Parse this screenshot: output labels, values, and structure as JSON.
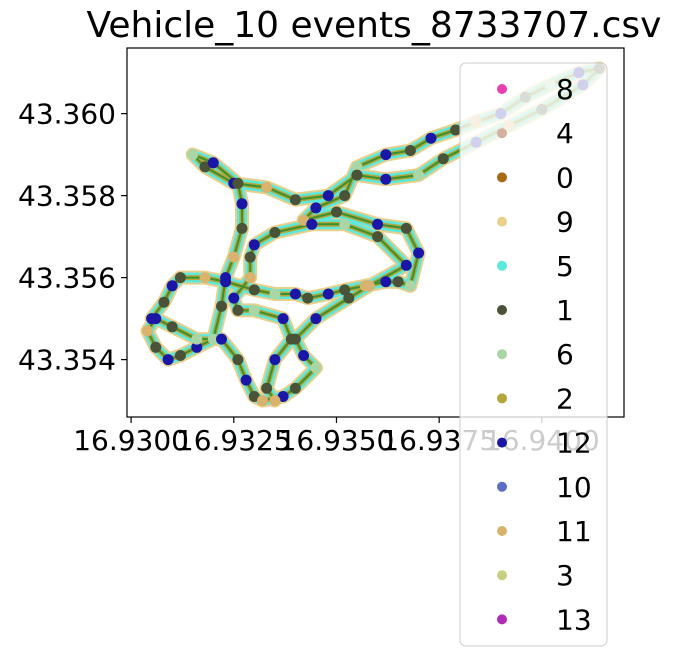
{
  "chart_data": {
    "type": "scatter",
    "title": "Vehicle_10 events_8733707.csv",
    "xlabel": "",
    "ylabel": "",
    "xlim": [
      16.9299,
      16.942
    ],
    "ylim": [
      43.3526,
      43.3616
    ],
    "x_ticks": [
      {
        "value": 16.93,
        "label": "16.9300"
      },
      {
        "value": 16.9325,
        "label": "16.9325"
      },
      {
        "value": 16.935,
        "label": "16.9350"
      },
      {
        "value": 16.9375,
        "label": "16.9375"
      },
      {
        "value": 16.94,
        "label": "16.9400"
      }
    ],
    "y_ticks": [
      {
        "value": 43.354,
        "label": "43.354"
      },
      {
        "value": 43.356,
        "label": "43.356"
      },
      {
        "value": 43.358,
        "label": "43.358"
      },
      {
        "value": 43.36,
        "label": "43.360"
      }
    ],
    "grid": false,
    "legend_position": "right",
    "series": [
      {
        "name": "8",
        "color": "#e83fb1"
      },
      {
        "name": "4",
        "color": "#d4b0a0"
      },
      {
        "name": "0",
        "color": "#a86a12"
      },
      {
        "name": "9",
        "color": "#e8d08c"
      },
      {
        "name": "5",
        "color": "#5ce8dc"
      },
      {
        "name": "1",
        "color": "#4a5238"
      },
      {
        "name": "6",
        "color": "#a9d6a4"
      },
      {
        "name": "2",
        "color": "#b3a63a"
      },
      {
        "name": "12",
        "color": "#1c16a6"
      },
      {
        "name": "10",
        "color": "#5c6fc2"
      },
      {
        "name": "11",
        "color": "#d9b26e"
      },
      {
        "name": "3",
        "color": "#c8d080"
      },
      {
        "name": "13",
        "color": "#ad2bb5"
      }
    ],
    "route": [
      [
        16.9305,
        43.355
      ],
      [
        16.9308,
        43.3554
      ],
      [
        16.931,
        43.3558
      ],
      [
        16.9312,
        43.356
      ],
      [
        16.9318,
        43.356
      ],
      [
        16.9323,
        43.3559
      ],
      [
        16.933,
        43.3557
      ],
      [
        16.9335,
        43.3556
      ],
      [
        16.934,
        43.3556
      ],
      [
        16.9343,
        43.3555
      ],
      [
        16.9348,
        43.3556
      ],
      [
        16.9352,
        43.3557
      ],
      [
        16.9357,
        43.3558
      ],
      [
        16.9362,
        43.3559
      ],
      [
        16.9365,
        43.3559
      ],
      [
        16.9368,
        43.3558
      ],
      [
        16.937,
        43.3566
      ],
      [
        16.9367,
        43.3572
      ],
      [
        16.936,
        43.3573
      ],
      [
        16.935,
        43.3576
      ],
      [
        16.9342,
        43.3574
      ],
      [
        16.9345,
        43.3577
      ],
      [
        16.9352,
        43.358
      ],
      [
        16.9355,
        43.3587
      ],
      [
        16.9362,
        43.359
      ],
      [
        16.9368,
        43.3591
      ],
      [
        16.9373,
        43.3594
      ],
      [
        16.9379,
        43.3596
      ],
      [
        16.9384,
        43.3598
      ],
      [
        16.939,
        43.36
      ],
      [
        16.9396,
        43.3604
      ],
      [
        16.9402,
        43.3607
      ],
      [
        16.9409,
        43.361
      ],
      [
        16.9414,
        43.3611
      ],
      [
        16.941,
        43.3607
      ],
      [
        16.94,
        43.3601
      ],
      [
        16.9392,
        43.3597
      ],
      [
        16.9384,
        43.3593
      ],
      [
        16.9376,
        43.3589
      ],
      [
        16.937,
        43.3585
      ],
      [
        16.9362,
        43.3584
      ],
      [
        16.9355,
        43.3585
      ],
      [
        16.9348,
        43.358
      ],
      [
        16.934,
        43.3579
      ],
      [
        16.9333,
        43.3582
      ],
      [
        16.9325,
        43.3583
      ],
      [
        16.9318,
        43.3587
      ],
      [
        16.9315,
        43.359
      ],
      [
        16.932,
        43.3588
      ],
      [
        16.9326,
        43.3583
      ],
      [
        16.9327,
        43.3578
      ],
      [
        16.9327,
        43.3572
      ],
      [
        16.9325,
        43.3565
      ],
      [
        16.9323,
        43.356
      ],
      [
        16.9322,
        43.3553
      ],
      [
        16.932,
        43.3545
      ],
      [
        16.9316,
        43.3543
      ],
      [
        16.9312,
        43.3541
      ],
      [
        16.9309,
        43.354
      ],
      [
        16.9306,
        43.3543
      ],
      [
        16.9304,
        43.3547
      ],
      [
        16.9306,
        43.355
      ],
      [
        16.931,
        43.3548
      ],
      [
        16.9316,
        43.3545
      ],
      [
        16.9322,
        43.3545
      ],
      [
        16.9326,
        43.354
      ],
      [
        16.9328,
        43.3535
      ],
      [
        16.933,
        43.3531
      ],
      [
        16.9332,
        43.353
      ],
      [
        16.9337,
        43.3531
      ],
      [
        16.934,
        43.3533
      ],
      [
        16.9345,
        43.3538
      ],
      [
        16.9342,
        43.3541
      ],
      [
        16.934,
        43.3545
      ],
      [
        16.9345,
        43.355
      ],
      [
        16.9353,
        43.3555
      ],
      [
        16.9358,
        43.3558
      ],
      [
        16.9367,
        43.3563
      ],
      [
        16.936,
        43.357
      ],
      [
        16.9352,
        43.3573
      ],
      [
        16.9344,
        43.3573
      ],
      [
        16.9335,
        43.3571
      ],
      [
        16.933,
        43.3568
      ],
      [
        16.9329,
        43.3565
      ],
      [
        16.9329,
        43.356
      ],
      [
        16.9325,
        43.3555
      ],
      [
        16.9326,
        43.3552
      ],
      [
        16.933,
        43.3552
      ],
      [
        16.9337,
        43.355
      ],
      [
        16.9339,
        43.3545
      ],
      [
        16.9335,
        43.354
      ],
      [
        16.9333,
        43.3533
      ],
      [
        16.9335,
        43.353
      ]
    ]
  }
}
